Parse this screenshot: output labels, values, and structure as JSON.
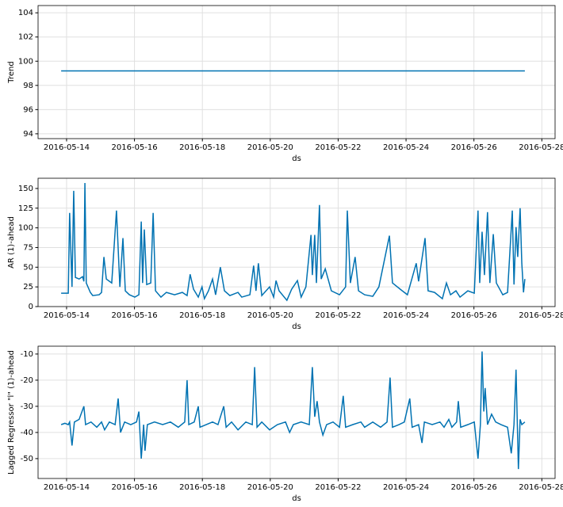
{
  "chart_data": [
    {
      "type": "line",
      "xlabel": "ds",
      "ylabel": "Trend",
      "color": "#0072b2",
      "grid": true,
      "x": [
        13.84,
        27.5
      ],
      "values": [
        99.2,
        99.2
      ],
      "xlim": [
        13.16,
        28.39
      ],
      "ylim": [
        93.6,
        104.6
      ],
      "xticks": [
        {
          "value": 14,
          "label": "2016-05-14"
        },
        {
          "value": 16,
          "label": "2016-05-16"
        },
        {
          "value": 18,
          "label": "2016-05-18"
        },
        {
          "value": 20,
          "label": "2016-05-20"
        },
        {
          "value": 22,
          "label": "2016-05-22"
        },
        {
          "value": 24,
          "label": "2016-05-24"
        },
        {
          "value": 26,
          "label": "2016-05-26"
        },
        {
          "value": 28,
          "label": "2016-05-28"
        }
      ],
      "yticks": [
        94,
        96,
        98,
        100,
        102,
        104
      ]
    },
    {
      "type": "line",
      "xlabel": "ds",
      "ylabel": "AR (1)-ahead",
      "color": "#0072b2",
      "grid": true,
      "x": [
        13.84,
        14.05,
        14.09,
        14.16,
        14.21,
        14.26,
        14.37,
        14.47,
        14.51,
        14.54,
        14.58,
        14.7,
        14.77,
        14.96,
        15.03,
        15.1,
        15.17,
        15.33,
        15.47,
        15.57,
        15.66,
        15.73,
        15.85,
        16.01,
        16.13,
        16.2,
        16.24,
        16.29,
        16.36,
        16.48,
        16.55,
        16.62,
        16.78,
        16.94,
        17.18,
        17.41,
        17.55,
        17.64,
        17.74,
        17.88,
        17.99,
        18.06,
        18.18,
        18.3,
        18.39,
        18.53,
        18.65,
        18.81,
        19.05,
        19.16,
        19.4,
        19.51,
        19.58,
        19.65,
        19.75,
        19.98,
        20.1,
        20.17,
        20.26,
        20.49,
        20.63,
        20.8,
        20.91,
        21.05,
        21.2,
        21.24,
        21.31,
        21.36,
        21.45,
        21.5,
        21.62,
        21.8,
        22.04,
        22.22,
        22.27,
        22.36,
        22.5,
        22.6,
        22.78,
        23.02,
        23.2,
        23.51,
        23.6,
        23.83,
        24.04,
        24.3,
        24.37,
        24.56,
        24.65,
        24.84,
        25.07,
        25.19,
        25.31,
        25.47,
        25.59,
        25.82,
        26.01,
        26.12,
        26.17,
        26.24,
        26.31,
        26.4,
        26.47,
        26.57,
        26.66,
        26.85,
        26.99,
        27.13,
        27.18,
        27.24,
        27.29,
        27.36,
        27.41,
        27.46,
        27.5
      ],
      "values": [
        17,
        17,
        119,
        25,
        147,
        37,
        35,
        38,
        32,
        157,
        30,
        18,
        14,
        15,
        18,
        63,
        35,
        30,
        122,
        25,
        87,
        20,
        15,
        12,
        15,
        108,
        30,
        98,
        28,
        30,
        119,
        20,
        12,
        18,
        15,
        18,
        14,
        41,
        22,
        12,
        25,
        10,
        20,
        35,
        15,
        50,
        20,
        14,
        18,
        12,
        15,
        52,
        20,
        55,
        14,
        25,
        12,
        33,
        20,
        8,
        22,
        33,
        12,
        25,
        91,
        40,
        91,
        30,
        129,
        35,
        48,
        20,
        15,
        25,
        122,
        30,
        63,
        20,
        15,
        13,
        25,
        90,
        30,
        22,
        15,
        55,
        32,
        87,
        20,
        18,
        10,
        30,
        15,
        20,
        12,
        20,
        17,
        122,
        30,
        95,
        40,
        120,
        30,
        92,
        30,
        15,
        18,
        122,
        28,
        101,
        63,
        125,
        55,
        18,
        35
      ],
      "xlim": [
        13.16,
        28.39
      ],
      "ylim": [
        0,
        163
      ],
      "xticks": [
        {
          "value": 14,
          "label": "2016-05-14"
        },
        {
          "value": 16,
          "label": "2016-05-16"
        },
        {
          "value": 18,
          "label": "2016-05-18"
        },
        {
          "value": 20,
          "label": "2016-05-20"
        },
        {
          "value": 22,
          "label": "2016-05-22"
        },
        {
          "value": 24,
          "label": "2016-05-24"
        },
        {
          "value": 26,
          "label": "2016-05-26"
        },
        {
          "value": 28,
          "label": "2016-05-28"
        }
      ],
      "yticks": [
        0,
        25,
        50,
        75,
        100,
        125,
        150
      ]
    },
    {
      "type": "line",
      "xlabel": "ds",
      "ylabel": "Lagged Regressor \"l\" (1)-ahead",
      "color": "#0072b2",
      "grid": true,
      "x": [
        13.84,
        13.95,
        14.05,
        14.09,
        14.16,
        14.23,
        14.37,
        14.51,
        14.56,
        14.72,
        14.89,
        15.03,
        15.12,
        15.26,
        15.43,
        15.52,
        15.59,
        15.71,
        15.89,
        16.06,
        16.13,
        16.2,
        16.27,
        16.31,
        16.38,
        16.59,
        16.83,
        17.06,
        17.29,
        17.48,
        17.55,
        17.6,
        17.76,
        17.88,
        17.93,
        18.11,
        18.3,
        18.46,
        18.63,
        18.7,
        18.86,
        19.05,
        19.28,
        19.47,
        19.54,
        19.61,
        19.75,
        19.98,
        20.21,
        20.45,
        20.57,
        20.68,
        20.91,
        21.15,
        21.24,
        21.31,
        21.38,
        21.45,
        21.55,
        21.66,
        21.85,
        22.04,
        22.15,
        22.22,
        22.43,
        22.67,
        22.78,
        23.02,
        23.25,
        23.44,
        23.53,
        23.6,
        23.79,
        23.95,
        24.11,
        24.18,
        24.37,
        24.47,
        24.54,
        24.77,
        25.0,
        25.12,
        25.26,
        25.35,
        25.49,
        25.54,
        25.61,
        25.82,
        26.01,
        26.12,
        26.19,
        26.24,
        26.29,
        26.33,
        26.4,
        26.52,
        26.64,
        26.8,
        26.99,
        27.1,
        27.18,
        27.24,
        27.31,
        27.36,
        27.41,
        27.5
      ],
      "values": [
        -37,
        -36.5,
        -37,
        -36,
        -45,
        -36,
        -35,
        -30,
        -37,
        -36,
        -38,
        -36,
        -39,
        -36,
        -37,
        -27,
        -40,
        -36,
        -37,
        -36,
        -32,
        -50,
        -37,
        -47,
        -37,
        -36,
        -37,
        -36,
        -38,
        -36,
        -20,
        -37,
        -36,
        -30,
        -38,
        -37,
        -36,
        -37,
        -30,
        -38,
        -36,
        -39,
        -36,
        -37,
        -15,
        -38,
        -36,
        -39,
        -37,
        -36,
        -40,
        -37,
        -36,
        -37,
        -15,
        -34,
        -28,
        -36,
        -41,
        -37,
        -36,
        -38,
        -26,
        -38,
        -37,
        -36,
        -38,
        -36,
        -38,
        -36,
        -19,
        -38,
        -37,
        -36,
        -27,
        -38,
        -37,
        -44,
        -36,
        -37,
        -36,
        -38,
        -35,
        -38,
        -36,
        -28,
        -38,
        -37,
        -36,
        -50,
        -37,
        -9,
        -32,
        -23,
        -37,
        -33,
        -36,
        -37,
        -38,
        -48,
        -37,
        -16,
        -54,
        -35,
        -37,
        -36
      ],
      "xlim": [
        13.16,
        28.39
      ],
      "ylim": [
        -57.6,
        -7
      ],
      "xticks": [
        {
          "value": 14,
          "label": "2016-05-14"
        },
        {
          "value": 16,
          "label": "2016-05-16"
        },
        {
          "value": 18,
          "label": "2016-05-18"
        },
        {
          "value": 20,
          "label": "2016-05-20"
        },
        {
          "value": 22,
          "label": "2016-05-22"
        },
        {
          "value": 24,
          "label": "2016-05-24"
        },
        {
          "value": 26,
          "label": "2016-05-26"
        },
        {
          "value": 28,
          "label": "2016-05-28"
        }
      ],
      "yticks": [
        -50,
        -40,
        -30,
        -20,
        -10
      ]
    }
  ]
}
